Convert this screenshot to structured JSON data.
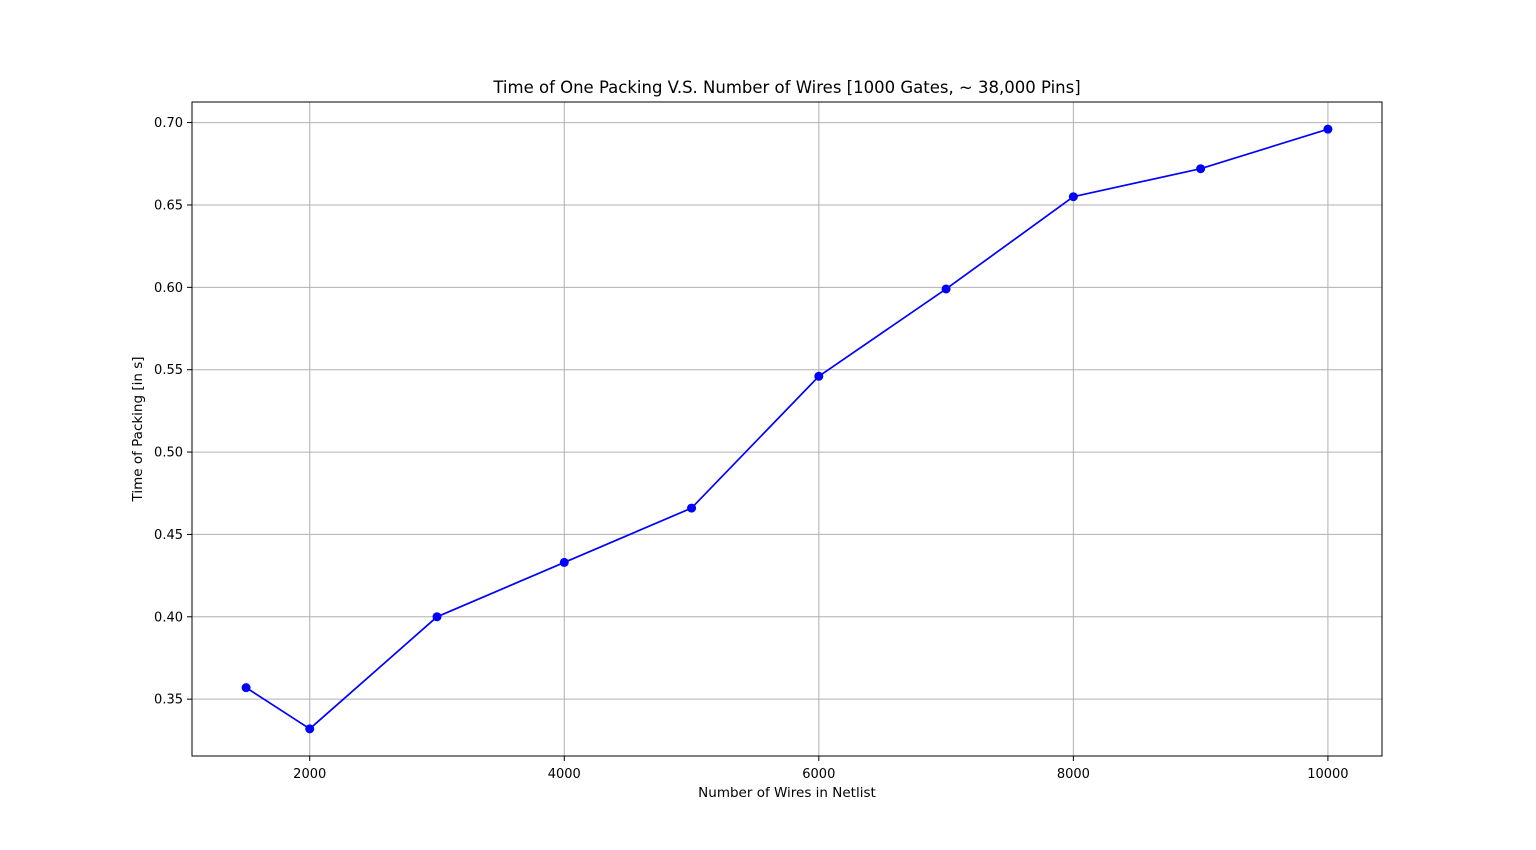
{
  "chart_data": {
    "type": "line",
    "title": "Time of One Packing V.S. Number of Wires [1000 Gates, ~ 38,000 Pins]",
    "xlabel": "Number of Wires in Netlist",
    "ylabel": "Time of Packing [in s]",
    "x": [
      1500,
      2000,
      3000,
      4000,
      5000,
      6000,
      7000,
      8000,
      9000,
      10000
    ],
    "series": [
      {
        "values": [
          0.357,
          0.332,
          0.4,
          0.433,
          0.466,
          0.546,
          0.599,
          0.655,
          0.672,
          0.696
        ],
        "color": "#0000ff",
        "marker": "circle"
      }
    ],
    "xlim": [
      1075,
      10425
    ],
    "ylim": [
      0.3155,
      0.7125
    ],
    "xticks": [
      2000,
      4000,
      6000,
      8000,
      10000
    ],
    "xtick_labels": [
      "2000",
      "4000",
      "6000",
      "8000",
      "10000"
    ],
    "yticks": [
      0.35,
      0.4,
      0.45,
      0.5,
      0.55,
      0.6,
      0.65,
      0.7
    ],
    "ytick_labels": [
      "0.35",
      "0.40",
      "0.45",
      "0.50",
      "0.55",
      "0.60",
      "0.65",
      "0.70"
    ],
    "grid": true,
    "colors": {
      "line": "#0000ff",
      "grid": "#b0b0b0",
      "axes": "#000000"
    }
  }
}
